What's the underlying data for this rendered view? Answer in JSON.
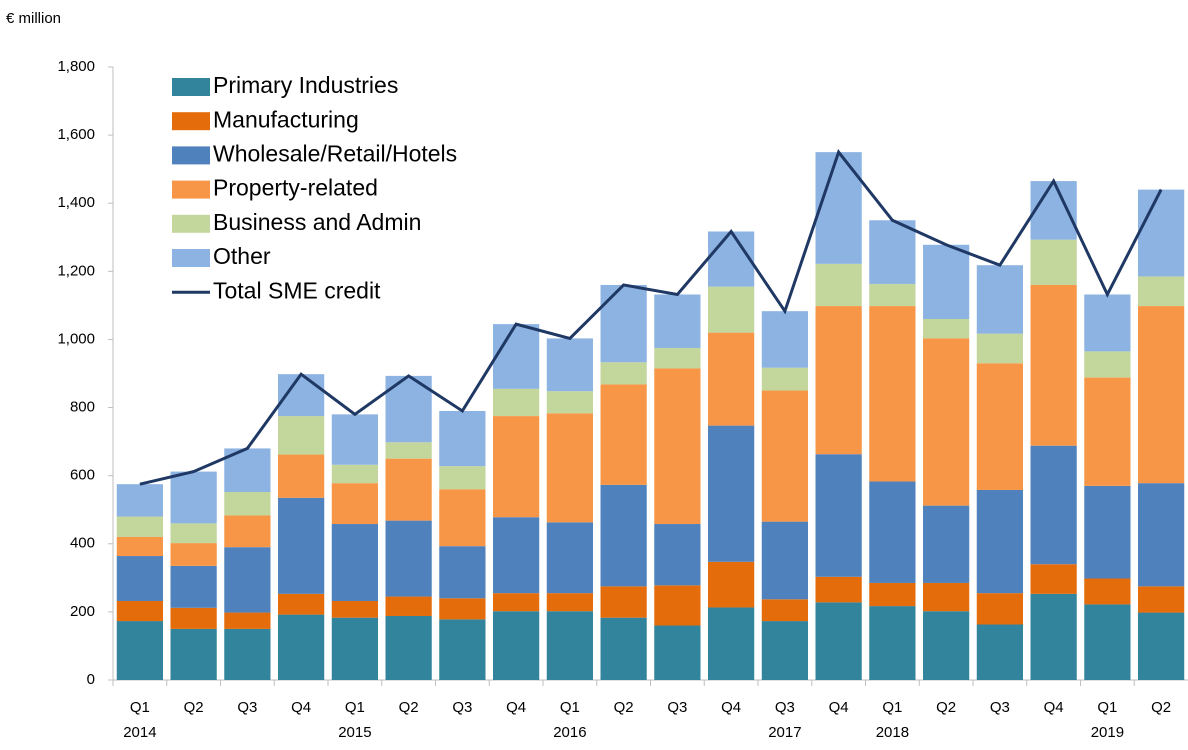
{
  "chart_data": {
    "type": "stacked-bar-line",
    "y_label": "€ million",
    "categories": [
      "Q1",
      "Q2",
      "Q3",
      "Q4",
      "Q1",
      "Q2",
      "Q3",
      "Q4",
      "Q1",
      "Q2",
      "Q3",
      "Q4",
      "Q3",
      "Q4",
      "Q1",
      "Q2",
      "Q3",
      "Q4",
      "Q1",
      "Q2"
    ],
    "category_years": [
      "2014",
      null,
      null,
      null,
      "2015",
      null,
      null,
      null,
      "2016",
      null,
      null,
      null,
      "2017",
      null,
      "2018",
      null,
      null,
      null,
      "2019",
      null
    ],
    "series": [
      {
        "name": "Primary Industries",
        "color": "#31849b",
        "values": [
          173,
          150,
          150,
          192,
          183,
          188,
          178,
          202,
          202,
          183,
          160,
          213,
          173,
          228,
          217,
          202,
          163,
          253,
          222,
          198
        ]
      },
      {
        "name": "Manufacturing",
        "color": "#e46c0a",
        "values": [
          59,
          62,
          48,
          61,
          49,
          57,
          62,
          53,
          53,
          92,
          118,
          134,
          64,
          75,
          68,
          83,
          92,
          87,
          76,
          77
        ]
      },
      {
        "name": "Wholesale/Retail/Hotels",
        "color": "#4f81bd",
        "values": [
          132,
          123,
          192,
          282,
          226,
          223,
          153,
          223,
          208,
          298,
          180,
          400,
          228,
          360,
          298,
          227,
          303,
          348,
          272,
          303
        ]
      },
      {
        "name": "Property-related",
        "color": "#f79646",
        "values": [
          56,
          67,
          93,
          127,
          120,
          182,
          167,
          297,
          320,
          295,
          457,
          273,
          385,
          435,
          515,
          491,
          372,
          472,
          318,
          520
        ]
      },
      {
        "name": "Business and Admin",
        "color": "#c3d69b",
        "values": [
          60,
          58,
          69,
          113,
          54,
          48,
          68,
          80,
          65,
          65,
          60,
          135,
          67,
          124,
          65,
          57,
          87,
          133,
          77,
          87
        ]
      },
      {
        "name": "Other",
        "color": "#8db3e2",
        "values": [
          95,
          152,
          128,
          123,
          148,
          195,
          162,
          190,
          155,
          227,
          157,
          162,
          166,
          328,
          187,
          218,
          201,
          172,
          167,
          255
        ]
      }
    ],
    "line_series": {
      "name": "Total SME credit",
      "color": "#1f3864",
      "values": [
        575,
        612,
        680,
        898,
        780,
        893,
        790,
        1045,
        1003,
        1160,
        1132,
        1317,
        1083,
        1550,
        1350,
        1278,
        1218,
        1465,
        1132,
        1440
      ]
    },
    "ylim": [
      0,
      1800
    ],
    "yticks": [
      0,
      200,
      400,
      600,
      800,
      {
        "value": 1000,
        "label": "1,000"
      },
      {
        "value": 1200,
        "label": "1,200"
      },
      {
        "value": 1400,
        "label": "1,400"
      },
      {
        "value": 1600,
        "label": "1,600"
      },
      {
        "value": 1800,
        "label": "1,800"
      }
    ],
    "legend_position": "upper left"
  }
}
